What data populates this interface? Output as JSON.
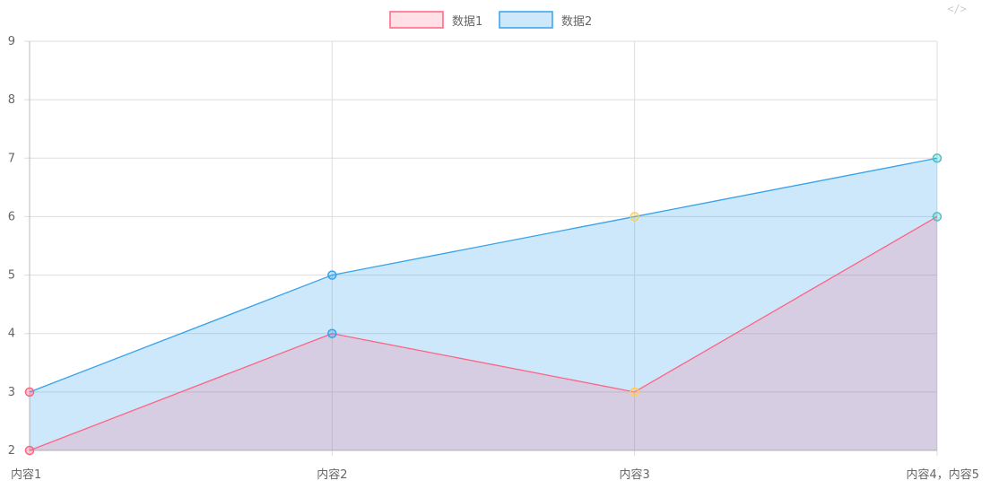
{
  "chart_data": {
    "type": "area",
    "categories": [
      "内容1",
      "内容2",
      "内容3",
      "内容4，内容5"
    ],
    "series": [
      {
        "name": "数据1",
        "values": [
          2,
          4,
          3,
          6
        ],
        "color": "#ff6384",
        "fill": "rgba(255,99,132,0.2)"
      },
      {
        "name": "数据2",
        "values": [
          3,
          5,
          6,
          7
        ],
        "color": "#36a2eb",
        "fill": "rgba(54,162,235,0.25)"
      }
    ],
    "point_colors": [
      "#ff6384",
      "#36a2eb",
      "#ffce56",
      "#4bc0c0"
    ],
    "ylim": [
      2,
      9
    ],
    "yticks": [
      2,
      3,
      4,
      5,
      6,
      7,
      8,
      9
    ],
    "grid": true,
    "legend": "top-center"
  },
  "toolbar": {
    "code_icon_label": "</>"
  }
}
